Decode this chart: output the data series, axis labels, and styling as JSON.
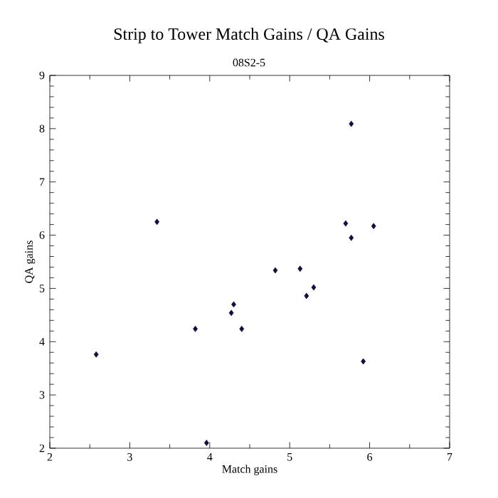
{
  "chart_data": {
    "type": "scatter",
    "title": "Strip to Tower Match Gains / QA Gains",
    "subtitle": "08S2-5",
    "xlabel": "Match gains",
    "ylabel": "QA gains",
    "x": [
      2.58,
      3.34,
      3.82,
      4.27,
      4.3,
      4.4,
      3.96,
      4.82,
      5.13,
      5.21,
      5.3,
      5.7,
      5.77,
      5.77,
      6.05,
      5.92
    ],
    "values": [
      3.76,
      6.25,
      4.24,
      4.54,
      4.7,
      4.24,
      2.1,
      5.34,
      5.37,
      4.86,
      5.02,
      6.22,
      5.95,
      8.09,
      6.17,
      3.63
    ],
    "color": "#101040",
    "marker": "diamond",
    "xlim": [
      2,
      7
    ],
    "ylim": [
      2,
      9
    ],
    "xticks": [
      2,
      3,
      4,
      5,
      6,
      7
    ],
    "yticks": [
      2,
      3,
      4,
      5,
      6,
      7,
      8,
      9
    ],
    "grid": false
  }
}
